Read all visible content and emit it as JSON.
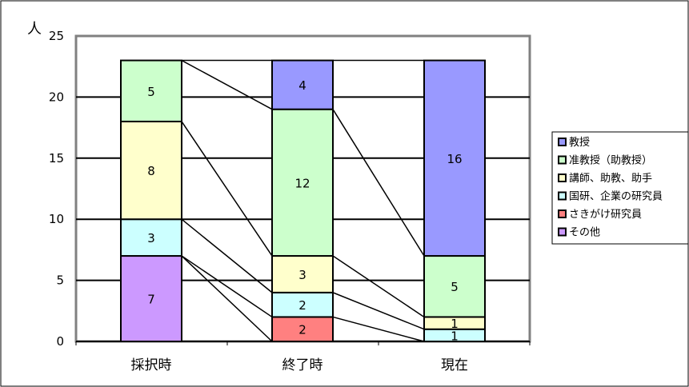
{
  "chart_data": {
    "type": "bar",
    "stacked": true,
    "ylabel": "人",
    "ylim": [
      0,
      25
    ],
    "yticks": [
      0,
      5,
      10,
      15,
      20,
      25
    ],
    "grid": true,
    "legend_position": "right",
    "categories": [
      "採択時",
      "終了時",
      "現在"
    ],
    "series": [
      {
        "name": "教授",
        "color": "#9999FF",
        "values": [
          0,
          4,
          16
        ]
      },
      {
        "name": "准教授（助教授）",
        "color": "#CCFFCC",
        "values": [
          5,
          12,
          5
        ]
      },
      {
        "name": "講師、助教、助手",
        "color": "#FFFFCC",
        "values": [
          8,
          3,
          1
        ]
      },
      {
        "name": "国研、企業の研究員",
        "color": "#CCFFFF",
        "values": [
          3,
          2,
          1
        ]
      },
      {
        "name": "さきがけ研究員",
        "color": "#FF8080",
        "values": [
          0,
          2,
          0
        ]
      },
      {
        "name": "その他",
        "color": "#CC99FF",
        "values": [
          7,
          0,
          0
        ]
      }
    ],
    "stack_order_bottom_to_top": [
      "その他",
      "さきがけ研究員",
      "国研、企業の研究員",
      "講師、助教、助手",
      "准教授（助教授）",
      "教授"
    ]
  }
}
